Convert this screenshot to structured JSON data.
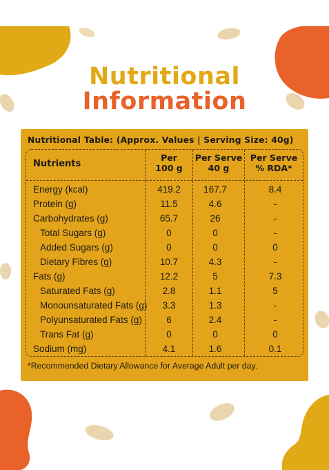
{
  "title": {
    "line1": "Nutritional",
    "line2": "Information"
  },
  "colors": {
    "yellow": "#E2A917",
    "orange": "#E8622A",
    "card": "#E3A41B",
    "text": "#1d1a14"
  },
  "table": {
    "caption": "Nutritional Table: (Approx. Values | Serving Size: 40g)",
    "headers": {
      "nutrients": "Nutrients",
      "per100_l1": "Per",
      "per100_l2": "100 g",
      "perserve_l1": "Per Serve",
      "perserve_l2": "40 g",
      "rda_l1": "Per Serve",
      "rda_l2": "% RDA*"
    },
    "rows": [
      {
        "name": "Energy (kcal)",
        "per100": "419.2",
        "perserve": "167.7",
        "rda": "8.4"
      },
      {
        "name": "Protein (g)",
        "per100": "11.5",
        "perserve": "4.6",
        "rda": "-"
      },
      {
        "name": "Carbohydrates (g)",
        "per100": "65.7",
        "perserve": "26",
        "rda": "-"
      },
      {
        "name": "Total Sugars (g)",
        "per100": "0",
        "perserve": "0",
        "rda": "-"
      },
      {
        "name": "Added Sugars (g)",
        "per100": "0",
        "perserve": "0",
        "rda": "0"
      },
      {
        "name": "Dietary Fibres (g)",
        "per100": "10.7",
        "perserve": "4.3",
        "rda": "-"
      },
      {
        "name": "Fats (g)",
        "per100": "12.2",
        "perserve": "5",
        "rda": "7.3"
      },
      {
        "name": "Saturated Fats (g)",
        "per100": "2.8",
        "perserve": "1.1",
        "rda": "5"
      },
      {
        "name": "Monounsaturated Fats (g)",
        "per100": "3.3",
        "perserve": "1.3",
        "rda": "-"
      },
      {
        "name": "Polyunsaturated Fats (g)",
        "per100": "6",
        "perserve": "2.4",
        "rda": "-"
      },
      {
        "name": "Trans Fat (g)",
        "per100": "0",
        "perserve": "0",
        "rda": "0"
      },
      {
        "name": "Sodium (mg)",
        "per100": "4.1",
        "perserve": "1.6",
        "rda": "0.1"
      }
    ],
    "footnote": "*Recommended Dietary Allowance for Average Adult per day."
  }
}
